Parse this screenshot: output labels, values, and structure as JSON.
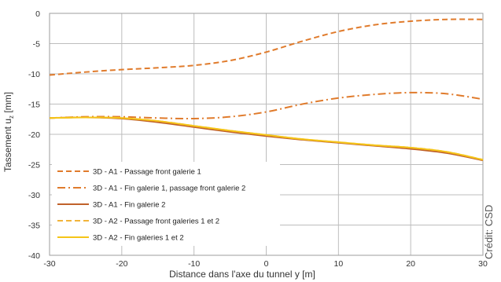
{
  "chart_data": {
    "type": "line",
    "xlabel": "Distance dans l'axe du tunnel y [m]",
    "ylabel": "Tassement u",
    "ylabel_sub": "z",
    "ylabel_unit": " [mm]",
    "xlim": [
      -30,
      30
    ],
    "ylim": [
      -40,
      0
    ],
    "xticks": [
      -30,
      -20,
      -10,
      0,
      10,
      20,
      30
    ],
    "yticks": [
      0,
      -5,
      -10,
      -15,
      -20,
      -25,
      -30,
      -35,
      -40
    ],
    "grid": true,
    "legend_position": "bottom-left",
    "series": [
      {
        "name": "3D - A1 - Passage front galerie 1",
        "color": "#e07b2c",
        "style": "dashed",
        "x": [
          -30,
          -25,
          -20,
          -15,
          -10,
          -5,
          0,
          5,
          10,
          15,
          20,
          25,
          30
        ],
        "y": [
          -10.2,
          -9.7,
          -9.3,
          -9.0,
          -8.6,
          -7.8,
          -6.4,
          -4.6,
          -3.0,
          -1.9,
          -1.3,
          -1.0,
          -1.0
        ]
      },
      {
        "name": "3D - A1 - Fin galerie 1, passage front galerie 2",
        "color": "#e07b2c",
        "style": "dashdot",
        "x": [
          -30,
          -25,
          -20,
          -15,
          -10,
          -5,
          0,
          5,
          10,
          15,
          20,
          25,
          30
        ],
        "y": [
          -17.3,
          -17.1,
          -17.1,
          -17.3,
          -17.4,
          -17.1,
          -16.3,
          -15.0,
          -14.0,
          -13.4,
          -13.1,
          -13.3,
          -14.2
        ]
      },
      {
        "name": "3D - A1 - Fin galerie 2",
        "color": "#c0612a",
        "style": "solid",
        "x": [
          -30,
          -25,
          -20,
          -15,
          -10,
          -5,
          0,
          5,
          10,
          15,
          20,
          25,
          30
        ],
        "y": [
          -17.3,
          -17.2,
          -17.4,
          -18.0,
          -18.8,
          -19.6,
          -20.3,
          -20.9,
          -21.4,
          -21.9,
          -22.4,
          -23.1,
          -24.3
        ]
      },
      {
        "name": "3D - A2 - Passage front galeries 1 et 2",
        "color": "#f2b43a",
        "style": "dashed",
        "x": [
          -30,
          -25,
          -20,
          -15,
          -10,
          -5,
          0,
          5,
          10,
          15,
          20,
          25,
          30
        ],
        "y": [
          -17.3,
          -17.2,
          -17.3,
          -17.8,
          -18.6,
          -19.4,
          -20.1,
          -20.8,
          -21.3,
          -21.8,
          -22.2,
          -22.9,
          -24.2
        ]
      },
      {
        "name": "3D - A2 - Fin galeries 1 et 2",
        "color": "#f5c518",
        "style": "solid",
        "x": [
          -30,
          -25,
          -20,
          -15,
          -10,
          -5,
          0,
          5,
          10,
          15,
          20,
          25,
          30
        ],
        "y": [
          -17.3,
          -17.2,
          -17.3,
          -17.8,
          -18.6,
          -19.4,
          -20.1,
          -20.8,
          -21.3,
          -21.8,
          -22.2,
          -22.9,
          -24.2
        ]
      }
    ]
  },
  "credit": "Crédit: CSD"
}
